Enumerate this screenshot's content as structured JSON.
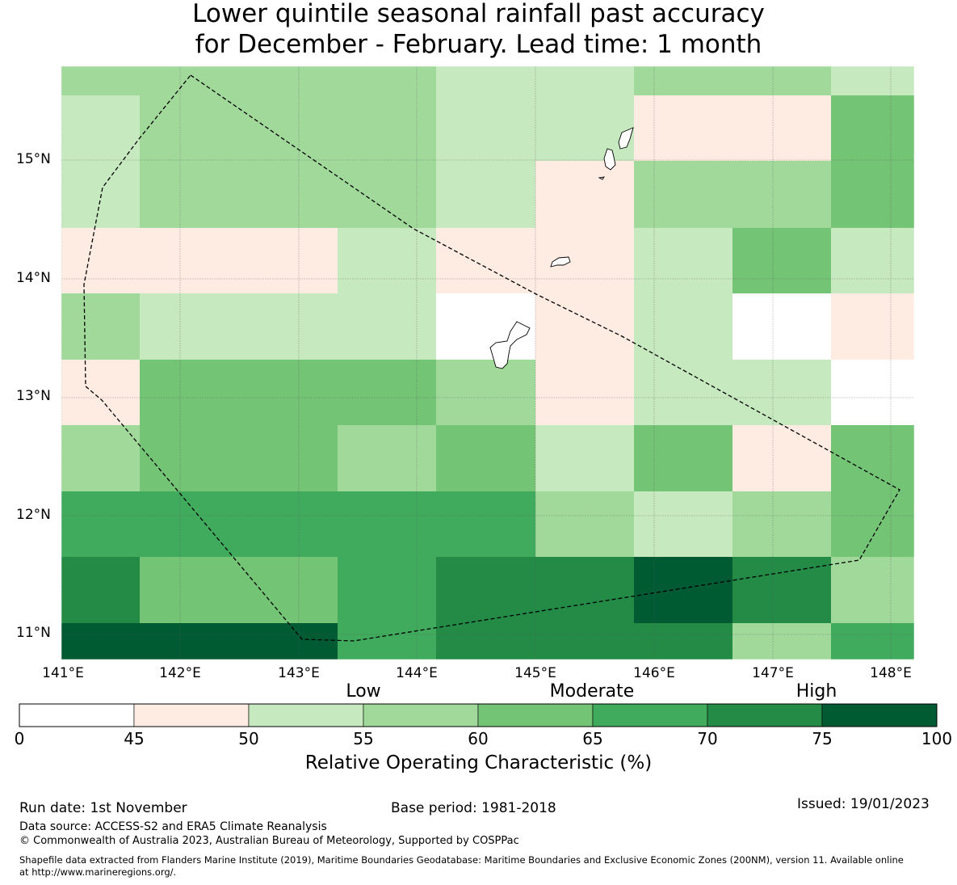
{
  "title": {
    "line1": "Lower quintile seasonal rainfall past accuracy",
    "line2": "for December - February. Lead time: 1 month"
  },
  "map": {
    "lat_labels": [
      "15°N",
      "14°N",
      "13°N",
      "12°N",
      "11°N"
    ],
    "lon_labels": [
      "141°E",
      "142°E",
      "143°E",
      "144°E",
      "145°E",
      "146°E",
      "147°E",
      "148°E"
    ],
    "grid_values": [
      [
        57,
        57,
        57,
        52,
        52,
        57,
        57,
        52
      ],
      [
        52,
        57,
        57,
        52,
        52,
        47,
        47,
        62
      ],
      [
        52,
        57,
        57,
        52,
        47,
        57,
        57,
        62
      ],
      [
        47,
        47,
        52,
        47,
        47,
        52,
        62,
        52
      ],
      [
        57,
        52,
        52,
        0,
        47,
        52,
        0,
        47
      ],
      [
        47,
        62,
        62,
        62,
        57,
        47,
        52,
        52,
        0
      ],
      [
        57,
        62,
        57,
        62,
        52,
        62,
        47,
        62
      ],
      [
        67,
        67,
        67,
        67,
        57,
        52,
        57,
        62
      ],
      [
        72,
        62,
        67,
        72,
        72,
        77,
        72,
        57
      ],
      [
        77,
        77,
        67,
        72,
        72,
        72,
        57,
        67
      ]
    ]
  },
  "colorbar": {
    "categories": [
      "Low",
      "Moderate",
      "High"
    ],
    "ticks": [
      "0",
      "45",
      "50",
      "55",
      "60",
      "65",
      "70",
      "75",
      "100"
    ],
    "colors": [
      "#ffffff",
      "#feebe2",
      "#c7e9c0",
      "#a1d99b",
      "#74c476",
      "#41ab5d",
      "#238b45",
      "#005a32"
    ],
    "title": "Relative Operating Characteristic (%)"
  },
  "footer": {
    "run_date": "Run date: 1st November",
    "base_period": "Base period: 1981-2018",
    "issued": "Issued: 19/01/2023",
    "data_source": "Data source: ACCESS-S2 and ERA5 Climate Reanalysis",
    "copyright": "© Commonwealth of Australia 2023, Australian Bureau of Meteorology, Supported by COSPPac",
    "shapefile_line1": "Shapefile data extracted from Flanders Marine Institute (2019), Maritime Boundaries Geodatabase: Maritime Boundaries and Exclusive Economic Zones (200NM), version 11. Available online",
    "shapefile_line2": "at http://www.marineregions.org/."
  }
}
